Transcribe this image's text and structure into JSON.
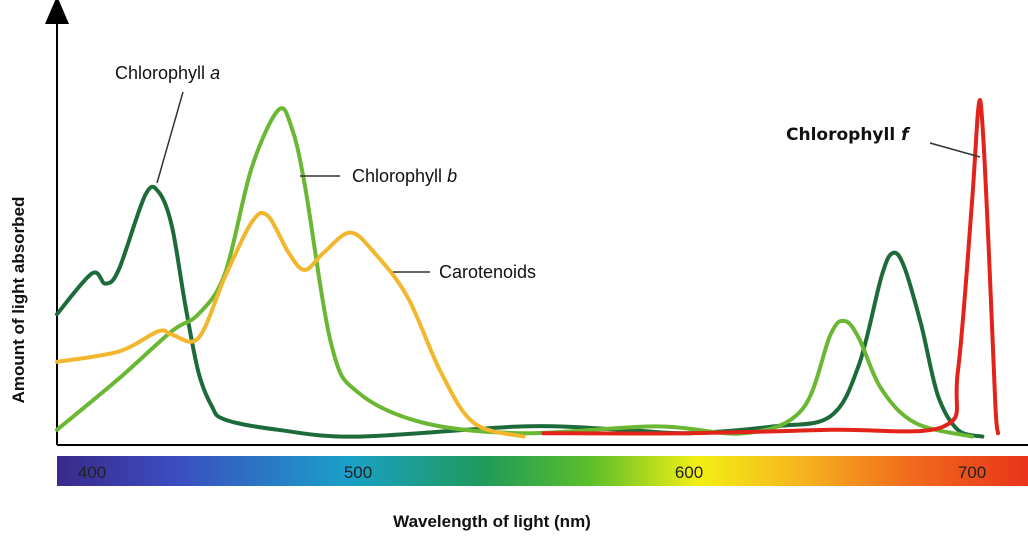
{
  "chart_data": {
    "type": "line",
    "xlabel": "Wavelength of light (nm)",
    "ylabel": "Amount of light absorbed",
    "x_ticks": [
      400,
      500,
      600,
      700
    ],
    "xlim": [
      388,
      743
    ],
    "ylim": [
      0,
      1
    ],
    "grid": false,
    "legend": "none",
    "color_spectrum_bar": true,
    "series": [
      {
        "name": "Chlorophyll",
        "name_suffix": "a",
        "color": "#1d6b3a",
        "points": [
          [
            388,
            0.37
          ],
          [
            400,
            0.49
          ],
          [
            405,
            0.46
          ],
          [
            410,
            0.5
          ],
          [
            420,
            0.72
          ],
          [
            425,
            0.73
          ],
          [
            430,
            0.63
          ],
          [
            435,
            0.4
          ],
          [
            440,
            0.2
          ],
          [
            445,
            0.1
          ],
          [
            450,
            0.06
          ],
          [
            470,
            0.03
          ],
          [
            500,
            0.01
          ],
          [
            550,
            0.04
          ],
          [
            580,
            0.03
          ],
          [
            600,
            0.02
          ],
          [
            630,
            0.04
          ],
          [
            650,
            0.07
          ],
          [
            660,
            0.22
          ],
          [
            668,
            0.48
          ],
          [
            672,
            0.55
          ],
          [
            676,
            0.51
          ],
          [
            682,
            0.34
          ],
          [
            688,
            0.13
          ],
          [
            695,
            0.03
          ],
          [
            708,
            0.01
          ]
        ]
      },
      {
        "name": "Chlorophyll",
        "name_suffix": "b",
        "color": "#6ab733",
        "points": [
          [
            388,
            0.03
          ],
          [
            410,
            0.18
          ],
          [
            430,
            0.32
          ],
          [
            440,
            0.37
          ],
          [
            450,
            0.49
          ],
          [
            460,
            0.8
          ],
          [
            470,
            0.97
          ],
          [
            475,
            0.92
          ],
          [
            480,
            0.75
          ],
          [
            490,
            0.28
          ],
          [
            500,
            0.14
          ],
          [
            520,
            0.05
          ],
          [
            550,
            0.02
          ],
          [
            590,
            0.04
          ],
          [
            620,
            0.02
          ],
          [
            640,
            0.09
          ],
          [
            650,
            0.31
          ],
          [
            655,
            0.35
          ],
          [
            660,
            0.3
          ],
          [
            668,
            0.15
          ],
          [
            680,
            0.05
          ],
          [
            700,
            0.01
          ]
        ]
      },
      {
        "name": "Carotenoids",
        "color": "#f2b72e",
        "points": [
          [
            388,
            0.23
          ],
          [
            410,
            0.26
          ],
          [
            425,
            0.32
          ],
          [
            430,
            0.31
          ],
          [
            440,
            0.3
          ],
          [
            450,
            0.48
          ],
          [
            460,
            0.64
          ],
          [
            466,
            0.66
          ],
          [
            474,
            0.55
          ],
          [
            480,
            0.5
          ],
          [
            487,
            0.55
          ],
          [
            497,
            0.61
          ],
          [
            505,
            0.55
          ],
          [
            515,
            0.42
          ],
          [
            525,
            0.2
          ],
          [
            535,
            0.05
          ],
          [
            550,
            0.01
          ]
        ]
      },
      {
        "name": "Chlorophyll",
        "name_suffix": "f",
        "color": "#e2231a",
        "points": [
          [
            556,
            0.02
          ],
          [
            600,
            0.02
          ],
          [
            650,
            0.03
          ],
          [
            690,
            0.04
          ],
          [
            695,
            0.2
          ],
          [
            700,
            0.7
          ],
          [
            705,
            0.98
          ],
          [
            708,
            0.93
          ],
          [
            713,
            0.55
          ],
          [
            718,
            0.1
          ],
          [
            720,
            0.02
          ]
        ]
      }
    ]
  }
}
